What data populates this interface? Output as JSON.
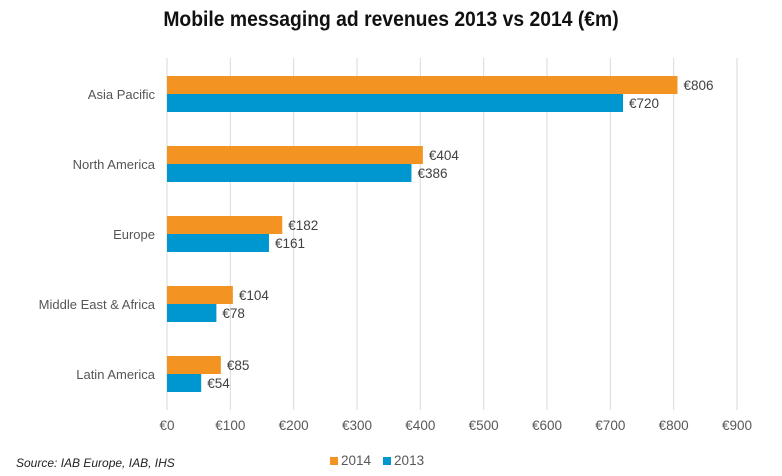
{
  "chart_data": {
    "type": "bar",
    "orientation": "horizontal",
    "title": "Mobile messaging ad revenues 2013 vs 2014 (€m)",
    "categories": [
      "Asia Pacific",
      "North America",
      "Europe",
      "Middle East & Africa",
      "Latin America"
    ],
    "series": [
      {
        "name": "2014",
        "color": "#F39322",
        "values": [
          806,
          404,
          182,
          104,
          85
        ],
        "labels": [
          "€806",
          "€404",
          "€182",
          "€104",
          "€85"
        ]
      },
      {
        "name": "2013",
        "color": "#0097D0",
        "values": [
          720,
          386,
          161,
          78,
          54
        ],
        "labels": [
          "€720",
          "€386",
          "€161",
          "€78",
          "€54"
        ]
      }
    ],
    "xlim": [
      0,
      900
    ],
    "xticks": [
      0,
      100,
      200,
      300,
      400,
      500,
      600,
      700,
      800,
      900
    ],
    "xtick_labels": [
      "€0",
      "€100",
      "€200",
      "€300",
      "€400",
      "€500",
      "€600",
      "€700",
      "€800",
      "€900"
    ],
    "xlabel": "",
    "ylabel": "",
    "grid": true,
    "legend_position": "bottom",
    "source": "Source: IAB Europe, IAB, IHS"
  }
}
